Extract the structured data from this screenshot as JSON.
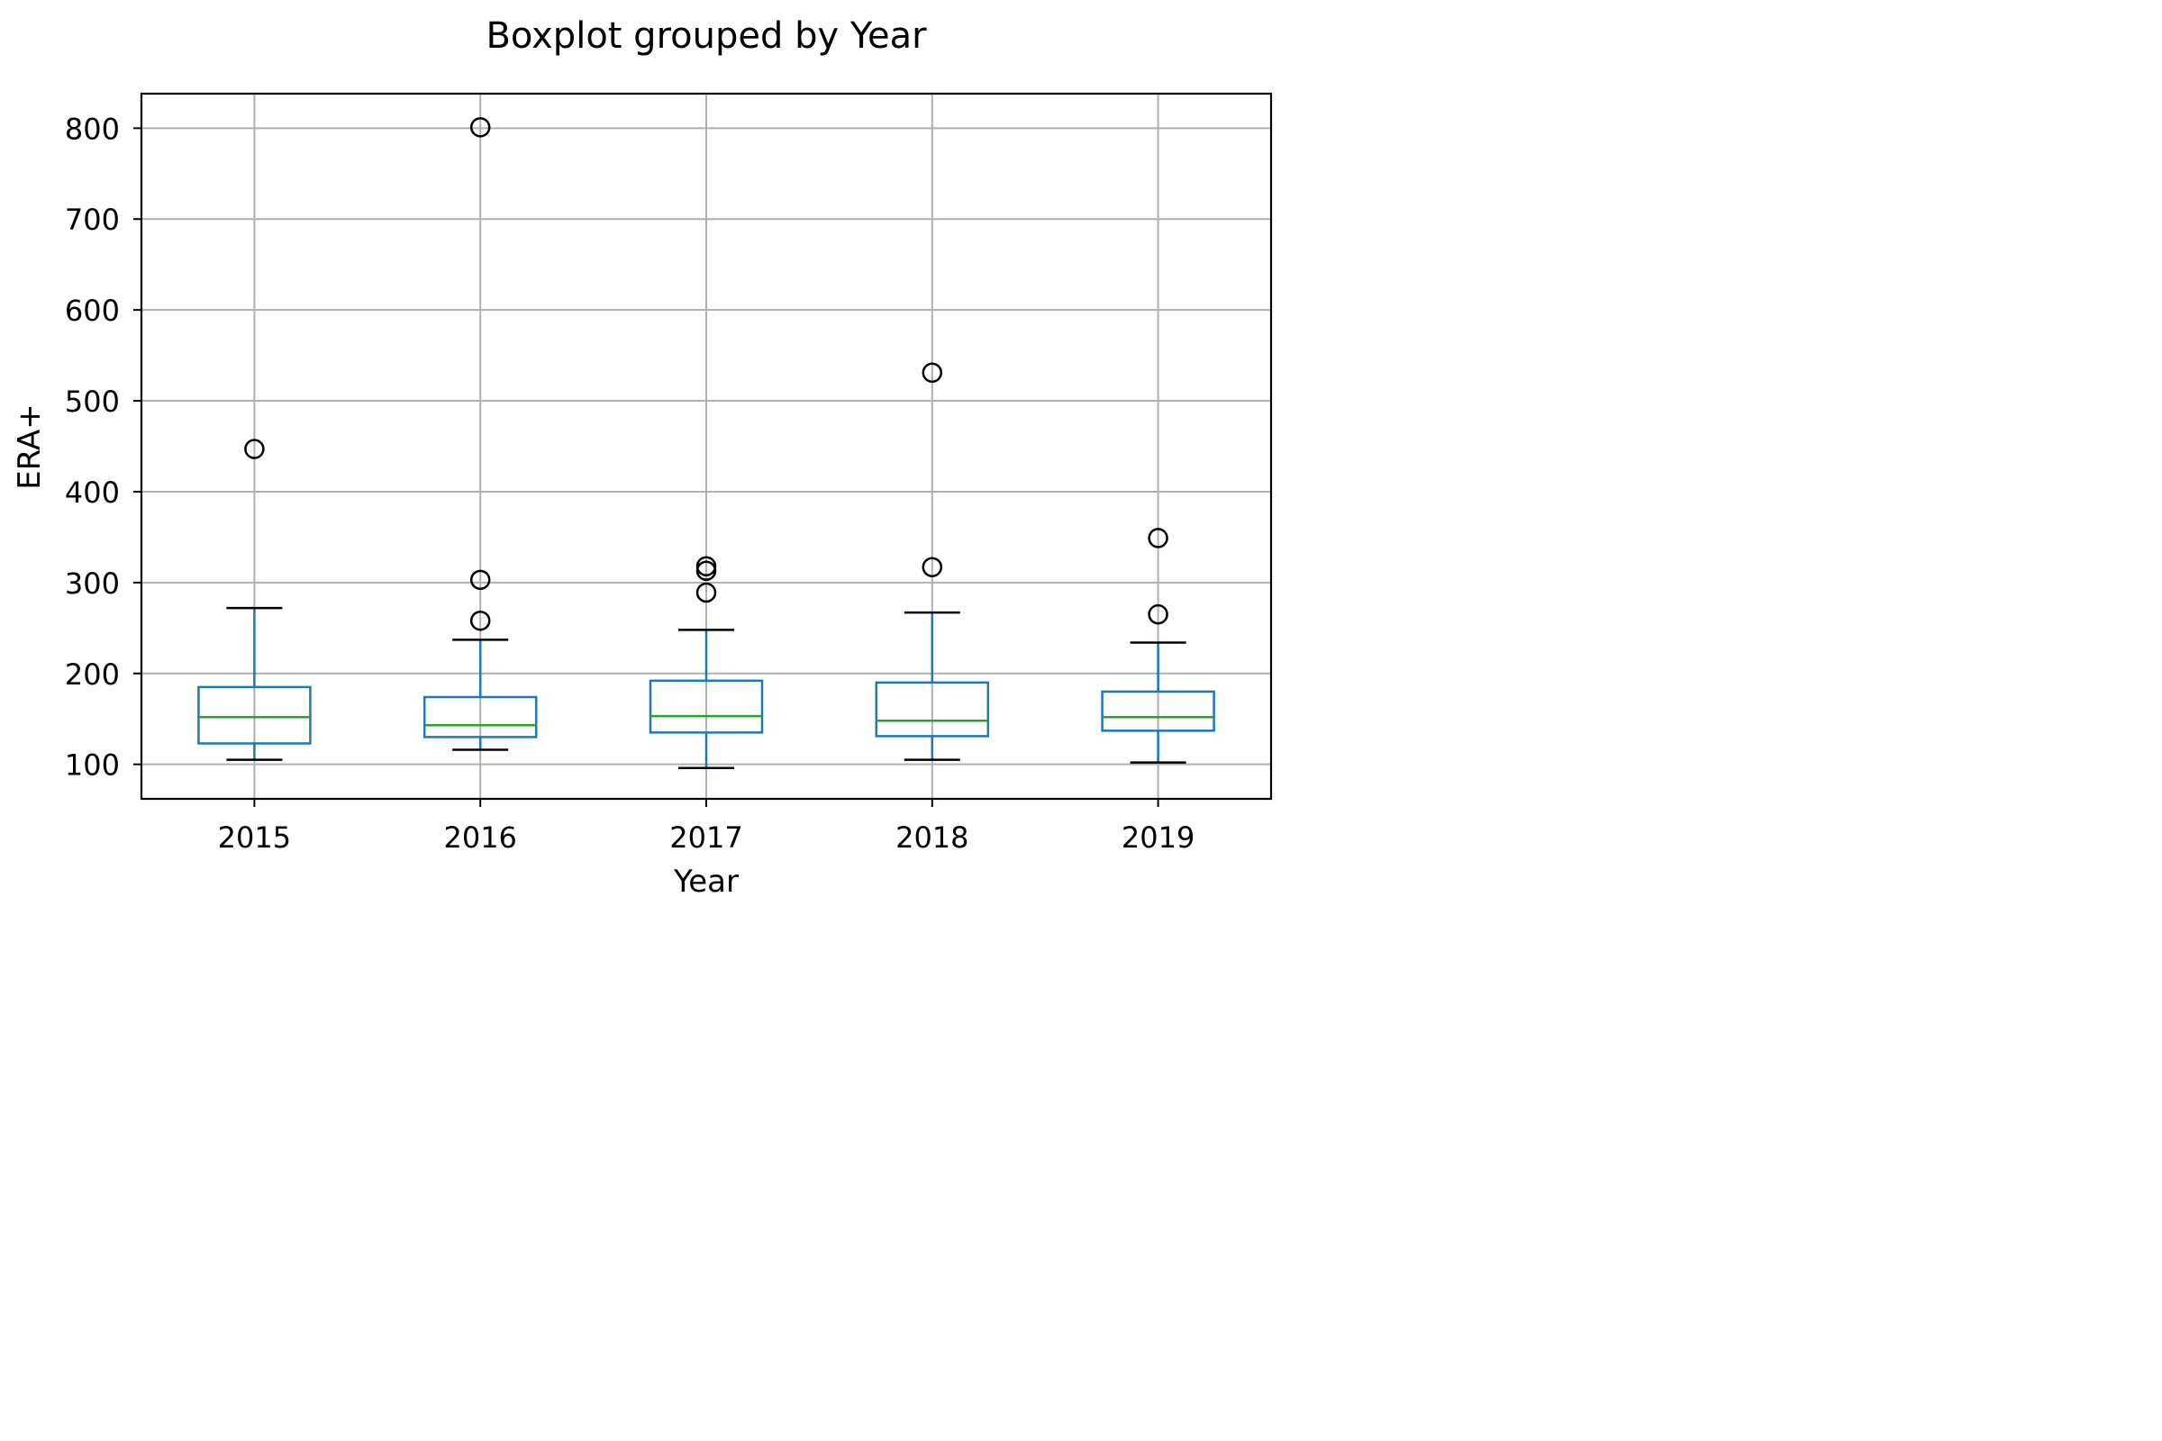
{
  "chart_data": {
    "type": "box",
    "title": "Boxplot grouped by Year",
    "xlabel": "Year",
    "ylabel": "ERA+",
    "ylim": [
      62,
      838
    ],
    "yticks": [
      100,
      200,
      300,
      400,
      500,
      600,
      700,
      800
    ],
    "grid": true,
    "categories": [
      "2015",
      "2016",
      "2017",
      "2018",
      "2019"
    ],
    "boxes": [
      {
        "category": "2015",
        "whisker_low": 105,
        "q1": 123,
        "median": 152,
        "q3": 185,
        "whisker_high": 272,
        "outliers": [
          447
        ]
      },
      {
        "category": "2016",
        "whisker_low": 116,
        "q1": 130,
        "median": 143,
        "q3": 174,
        "whisker_high": 237,
        "outliers": [
          258,
          303,
          801
        ]
      },
      {
        "category": "2017",
        "whisker_low": 96,
        "q1": 135,
        "median": 153,
        "q3": 192,
        "whisker_high": 248,
        "outliers": [
          289,
          313,
          318
        ]
      },
      {
        "category": "2018",
        "whisker_low": 105,
        "q1": 131,
        "median": 148,
        "q3": 190,
        "whisker_high": 267,
        "outliers": [
          317,
          531
        ]
      },
      {
        "category": "2019",
        "whisker_low": 102,
        "q1": 137,
        "median": 152,
        "q3": 180,
        "whisker_high": 234,
        "outliers": [
          265,
          349
        ]
      }
    ],
    "colors": {
      "box": "#1f77b4",
      "median": "#2ca02c",
      "grid": "#b0b0b0",
      "outlier": "#000000"
    }
  }
}
